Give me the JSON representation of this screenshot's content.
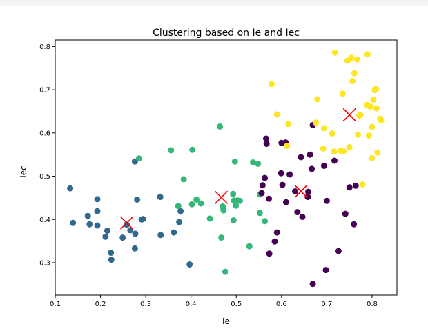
{
  "chart_data": {
    "type": "scatter",
    "title": "Clustering based on Ie and Iec",
    "xlabel": "Ie",
    "ylabel": "Iec",
    "xlim": [
      0.1,
      0.855
    ],
    "ylim": [
      0.225,
      0.815
    ],
    "xticks": [
      "0.1",
      "0.2",
      "0.3",
      "0.4",
      "0.5",
      "0.6",
      "0.7",
      "0.8"
    ],
    "yticks": [
      "0.3",
      "0.4",
      "0.5",
      "0.6",
      "0.7",
      "0.8"
    ],
    "grid": false,
    "legend": false,
    "series": [
      {
        "color": "#31688e",
        "points": [
          [
            0.133,
            0.472
          ],
          [
            0.139,
            0.392
          ],
          [
            0.172,
            0.408
          ],
          [
            0.176,
            0.389
          ],
          [
            0.193,
            0.447
          ],
          [
            0.193,
            0.419
          ],
          [
            0.193,
            0.386
          ],
          [
            0.211,
            0.36
          ],
          [
            0.215,
            0.374
          ],
          [
            0.223,
            0.323
          ],
          [
            0.224,
            0.307
          ],
          [
            0.249,
            0.358
          ],
          [
            0.258,
            0.388
          ],
          [
            0.266,
            0.375
          ],
          [
            0.276,
            0.534
          ],
          [
            0.276,
            0.333
          ],
          [
            0.277,
            0.367
          ],
          [
            0.281,
            0.446
          ],
          [
            0.291,
            0.4
          ],
          [
            0.294,
            0.401
          ],
          [
            0.332,
            0.452
          ],
          [
            0.333,
            0.364
          ],
          [
            0.362,
            0.37
          ],
          [
            0.374,
            0.394
          ],
          [
            0.377,
            0.419
          ],
          [
            0.397,
            0.296
          ]
        ]
      },
      {
        "color": "#35b779",
        "points": [
          [
            0.285,
            0.541
          ],
          [
            0.356,
            0.56
          ],
          [
            0.372,
            0.431
          ],
          [
            0.384,
            0.493
          ],
          [
            0.402,
            0.435
          ],
          [
            0.403,
            0.561
          ],
          [
            0.412,
            0.446
          ],
          [
            0.422,
            0.437
          ],
          [
            0.442,
            0.402
          ],
          [
            0.464,
            0.615
          ],
          [
            0.467,
            0.358
          ],
          [
            0.47,
            0.43
          ],
          [
            0.471,
            0.427
          ],
          [
            0.472,
            0.421
          ],
          [
            0.476,
            0.279
          ],
          [
            0.493,
            0.459
          ],
          [
            0.494,
            0.398
          ],
          [
            0.495,
            0.444
          ],
          [
            0.497,
            0.534
          ],
          [
            0.499,
            0.432
          ],
          [
            0.503,
            0.444
          ],
          [
            0.508,
            0.443
          ],
          [
            0.529,
            0.338
          ],
          [
            0.537,
            0.532
          ],
          [
            0.548,
            0.529
          ],
          [
            0.552,
            0.458
          ],
          [
            0.552,
            0.415
          ],
          [
            0.563,
            0.396
          ]
        ]
      },
      {
        "color": "#440154",
        "points": [
          [
            0.556,
            0.461
          ],
          [
            0.558,
            0.479
          ],
          [
            0.563,
            0.496
          ],
          [
            0.566,
            0.587
          ],
          [
            0.567,
            0.575
          ],
          [
            0.572,
            0.448
          ],
          [
            0.573,
            0.321
          ],
          [
            0.585,
            0.349
          ],
          [
            0.59,
            0.37
          ],
          [
            0.599,
            0.507
          ],
          [
            0.6,
            0.577
          ],
          [
            0.602,
            0.48
          ],
          [
            0.609,
            0.578
          ],
          [
            0.61,
            0.44
          ],
          [
            0.618,
            0.504
          ],
          [
            0.63,
            0.465
          ],
          [
            0.635,
            0.417
          ],
          [
            0.643,
            0.544
          ],
          [
            0.646,
            0.406
          ],
          [
            0.658,
            0.452
          ],
          [
            0.659,
            0.464
          ],
          [
            0.663,
            0.55
          ],
          [
            0.667,
            0.517
          ],
          [
            0.669,
            0.251
          ],
          [
            0.669,
            0.618
          ],
          [
            0.694,
            0.524
          ],
          [
            0.698,
            0.283
          ],
          [
            0.7,
            0.443
          ],
          [
            0.717,
            0.536
          ],
          [
            0.726,
            0.327
          ],
          [
            0.741,
            0.413
          ],
          [
            0.75,
            0.474
          ],
          [
            0.76,
            0.389
          ],
          [
            0.764,
            0.478
          ]
        ]
      },
      {
        "color": "#fde725",
        "points": [
          [
            0.578,
            0.713
          ],
          [
            0.59,
            0.643
          ],
          [
            0.612,
            0.57
          ],
          [
            0.615,
            0.621
          ],
          [
            0.676,
            0.624
          ],
          [
            0.679,
            0.678
          ],
          [
            0.692,
            0.564
          ],
          [
            0.694,
            0.611
          ],
          [
            0.712,
            0.599
          ],
          [
            0.716,
            0.557
          ],
          [
            0.718,
            0.786
          ],
          [
            0.731,
            0.559
          ],
          [
            0.735,
            0.691
          ],
          [
            0.737,
            0.558
          ],
          [
            0.746,
            0.767
          ],
          [
            0.75,
            0.567
          ],
          [
            0.754,
            0.774
          ],
          [
            0.757,
            0.72
          ],
          [
            0.761,
            0.738
          ],
          [
            0.767,
            0.77
          ],
          [
            0.769,
            0.596
          ],
          [
            0.772,
            0.64
          ],
          [
            0.774,
            0.642
          ],
          [
            0.779,
            0.481
          ],
          [
            0.789,
            0.665
          ],
          [
            0.79,
            0.782
          ],
          [
            0.793,
            0.594
          ],
          [
            0.796,
            0.661
          ],
          [
            0.8,
            0.542
          ],
          [
            0.8,
            0.614
          ],
          [
            0.803,
            0.677
          ],
          [
            0.806,
            0.699
          ],
          [
            0.809,
            0.702
          ],
          [
            0.81,
            0.657
          ],
          [
            0.812,
            0.555
          ],
          [
            0.818,
            0.633
          ],
          [
            0.82,
            0.629
          ]
        ]
      }
    ],
    "centroids": {
      "color": "#ff0000",
      "marker": "x",
      "points": [
        [
          0.258,
          0.392
        ],
        [
          0.467,
          0.451
        ],
        [
          0.643,
          0.465
        ],
        [
          0.75,
          0.642
        ]
      ]
    }
  }
}
